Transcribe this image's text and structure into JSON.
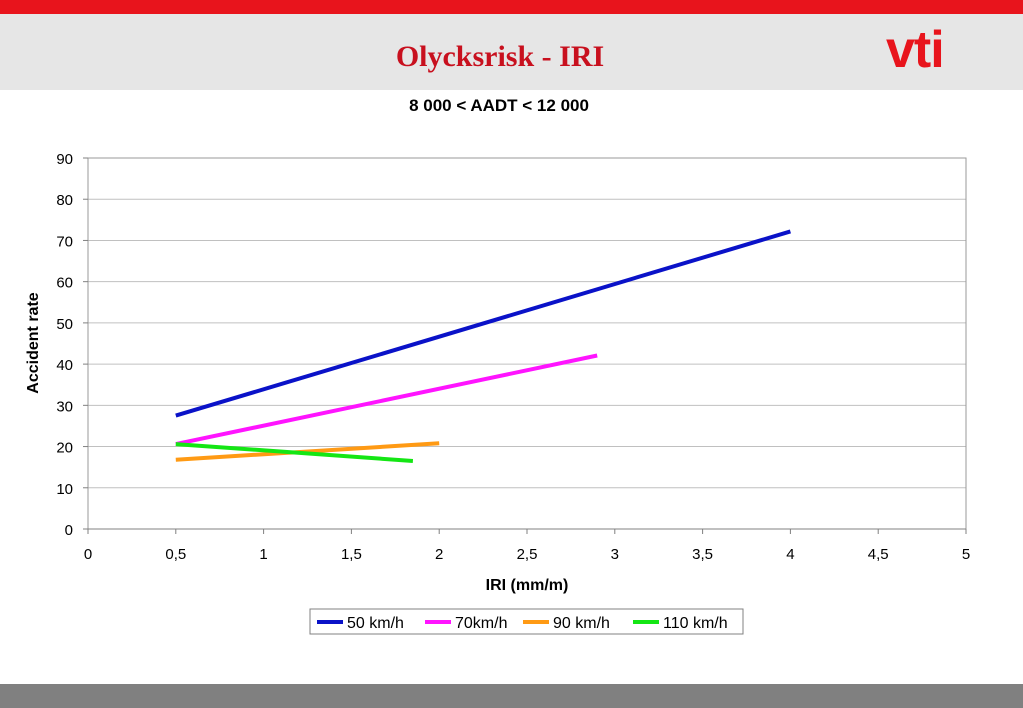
{
  "slide": {
    "title": "Olycksrisk - IRI",
    "logo_text": "vti",
    "colors": {
      "accent": "#e8141c",
      "title": "#c8101e",
      "header_bg": "#e6e6e6",
      "footer_bg": "#808080"
    }
  },
  "chart_data": {
    "type": "line",
    "title": "8 000 < AADT < 12 000",
    "xlabel": "IRI (mm/m)",
    "ylabel": "Accident rate",
    "xlim": [
      0,
      5
    ],
    "ylim": [
      0,
      90
    ],
    "xticks": [
      0,
      0.5,
      1,
      1.5,
      2,
      2.5,
      3,
      3.5,
      4,
      4.5,
      5
    ],
    "xtick_labels": [
      "0",
      "0,5",
      "1",
      "1,5",
      "2",
      "2,5",
      "3",
      "3,5",
      "4",
      "4,5",
      "5"
    ],
    "yticks": [
      0,
      10,
      20,
      30,
      40,
      50,
      60,
      70,
      80,
      90
    ],
    "ytick_labels": [
      "0",
      "10",
      "20",
      "30",
      "40",
      "50",
      "60",
      "70",
      "80",
      "90"
    ],
    "grid": "horizontal",
    "legend": "bottom",
    "series": [
      {
        "name": "50 km/h",
        "color": "#0a12c8",
        "x": [
          0.5,
          4.0
        ],
        "y": [
          27.5,
          72.2
        ]
      },
      {
        "name": "70km/h",
        "color": "#ff14ff",
        "x": [
          0.5,
          2.9
        ],
        "y": [
          20.6,
          42.1
        ]
      },
      {
        "name": "90 km/h",
        "color": "#ff9a14",
        "x": [
          0.5,
          2.0
        ],
        "y": [
          16.8,
          20.8
        ]
      },
      {
        "name": "110 km/h",
        "color": "#14e614",
        "x": [
          0.5,
          1.85
        ],
        "y": [
          20.6,
          16.5
        ]
      }
    ]
  }
}
